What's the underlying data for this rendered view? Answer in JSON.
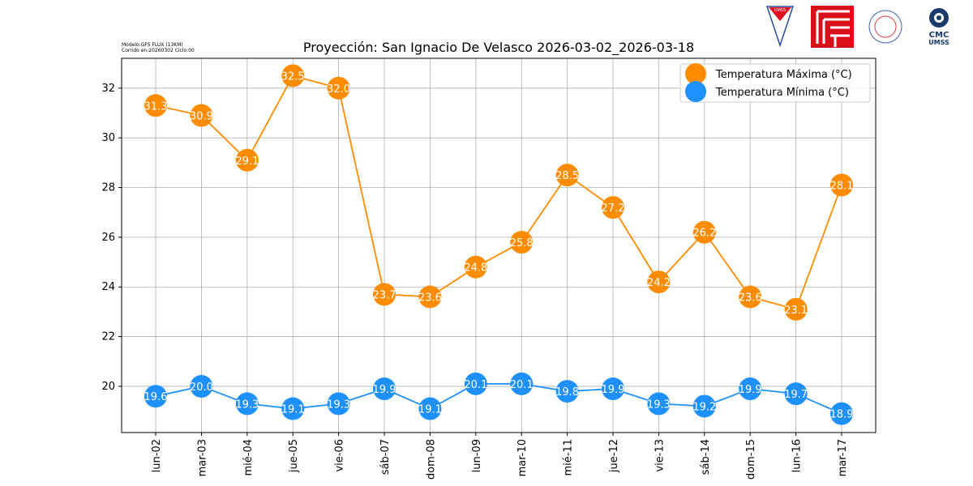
{
  "meta": {
    "model": "Modelo:GFS FLUX (13KM)",
    "run": "Corrido en:20260302 Ciclo:00"
  },
  "logos": [
    "UMSS",
    "CMC",
    "UMSS"
  ],
  "chart_data": {
    "type": "line",
    "title": "Proyección: San Ignacio De Velasco 2026-03-02_2026-03-18",
    "xlabel": "",
    "ylabel": "",
    "categories": [
      "lun-02",
      "mar-03",
      "mié-04",
      "jue-05",
      "vie-06",
      "sáb-07",
      "dom-08",
      "lun-09",
      "mar-10",
      "mié-11",
      "jue-12",
      "vie-13",
      "sáb-14",
      "dom-15",
      "lun-16",
      "mar-17"
    ],
    "ylim": [
      18.14,
      33.2
    ],
    "yticks": [
      20,
      22,
      24,
      26,
      28,
      30,
      32
    ],
    "grid": true,
    "legend_position": "top-right",
    "series": [
      {
        "name": "Temperatura Máxima  (°C)",
        "color": "#ff8c00",
        "labels": [
          "31.3",
          "30.9",
          "29.1",
          "32.5",
          "32.0",
          "23.7",
          "23.6",
          "24.8",
          "25.8",
          "28.5",
          "27.2",
          "24.2",
          "26.2",
          "23.6",
          "23.1",
          "28.1"
        ],
        "values": [
          31.3,
          30.9,
          29.1,
          32.5,
          32.0,
          23.7,
          23.6,
          24.8,
          25.8,
          28.5,
          27.2,
          24.2,
          26.2,
          23.6,
          23.1,
          28.1
        ]
      },
      {
        "name": "Temperatura Mínima  (°C)",
        "color": "#1e90ff",
        "labels": [
          "19.6",
          "20.0",
          "19.3",
          "19.1",
          "19.3",
          "19.9",
          "19.1",
          "20.1",
          "20.1",
          "19.8",
          "19.9",
          "19.3",
          "19.2",
          "19.9",
          "19.7",
          "18.9"
        ],
        "values": [
          19.6,
          20.0,
          19.3,
          19.1,
          19.3,
          19.9,
          19.1,
          20.1,
          20.1,
          19.8,
          19.9,
          19.3,
          19.2,
          19.9,
          19.7,
          18.9
        ]
      }
    ]
  }
}
